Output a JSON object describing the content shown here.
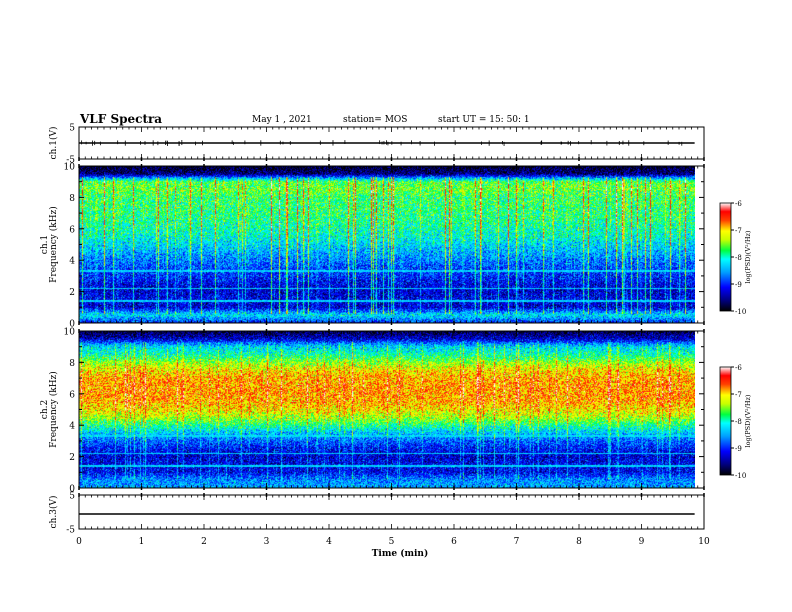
{
  "header": {
    "title": "VLF Spectra",
    "date": "May 1 , 2021",
    "station": "station= MOS",
    "start": "start UT = 15: 50: 1"
  },
  "chart_data": [
    {
      "type": "line",
      "panel": "ch1-voltage",
      "ylabel": "ch.1(V)",
      "ylim": [
        -5,
        5
      ],
      "y_ticks": [
        "5",
        "-5"
      ],
      "series": [
        {
          "x": [
            0,
            9.85
          ],
          "y": [
            0,
            0
          ]
        }
      ]
    },
    {
      "type": "heatmap",
      "panel": "ch1-spectrogram",
      "ylabel": "ch.1\nFrequency (kHz)",
      "ylim": [
        0,
        10
      ],
      "y_ticks": [
        "0",
        "2",
        "4",
        "6",
        "8",
        "10"
      ],
      "x_extent_min": [
        0,
        9.85
      ],
      "colorbar": {
        "label": "log(PSD)(V²/Hz)",
        "ticks": [
          "-6",
          "-7",
          "-8",
          "-9",
          "-10"
        ],
        "range": [
          -10,
          -6
        ]
      },
      "profile_freq_khz": [
        0,
        0.5,
        1,
        1.5,
        2,
        2.5,
        3,
        3.5,
        4,
        4.5,
        5,
        5.5,
        6,
        6.5,
        7,
        7.5,
        8,
        8.5,
        9,
        9.5,
        10
      ],
      "profile_mean_log_psd": [
        -9.0,
        -8.2,
        -9.3,
        -9.2,
        -9.3,
        -9.2,
        -9.0,
        -8.9,
        -8.7,
        -8.5,
        -8.3,
        -8.1,
        -8.0,
        -7.9,
        -7.85,
        -7.8,
        -7.8,
        -7.6,
        -7.7,
        -9.6,
        -9.9
      ]
    },
    {
      "type": "heatmap",
      "panel": "ch2-spectrogram",
      "ylabel": "ch.2\nFrequency (kHz)",
      "ylim": [
        0,
        10
      ],
      "y_ticks": [
        "0",
        "2",
        "4",
        "6",
        "8",
        "10"
      ],
      "x_extent_min": [
        0,
        9.85
      ],
      "colorbar": {
        "label": "log(PSD)(V²/Hz)",
        "ticks": [
          "-6",
          "-7",
          "-8",
          "-9",
          "-10"
        ],
        "range": [
          -10,
          -6
        ]
      },
      "profile_freq_khz": [
        0,
        0.5,
        1,
        1.5,
        2,
        2.5,
        3,
        3.5,
        4,
        4.5,
        5,
        5.5,
        6,
        6.5,
        7,
        7.5,
        8,
        8.5,
        9,
        9.5,
        10
      ],
      "profile_mean_log_psd": [
        -8.5,
        -8.6,
        -9.2,
        -9.2,
        -9.3,
        -9.1,
        -8.8,
        -8.4,
        -7.9,
        -7.4,
        -7.1,
        -6.9,
        -6.85,
        -6.85,
        -6.9,
        -7.1,
        -7.5,
        -8.0,
        -8.3,
        -9.3,
        -9.8
      ]
    },
    {
      "type": "line",
      "panel": "ch3-voltage",
      "ylabel": "ch.3(V)",
      "ylim": [
        -5,
        5
      ],
      "y_ticks": [
        "5",
        "-5"
      ],
      "series": [
        {
          "x": [
            0,
            9.85
          ],
          "y": [
            -0.6,
            -0.6
          ]
        }
      ]
    }
  ],
  "x_axis": {
    "label": "Time (min)",
    "range": [
      0,
      10
    ],
    "ticks": [
      "0",
      "1",
      "2",
      "3",
      "4",
      "5",
      "6",
      "7",
      "8",
      "9",
      "10"
    ]
  }
}
